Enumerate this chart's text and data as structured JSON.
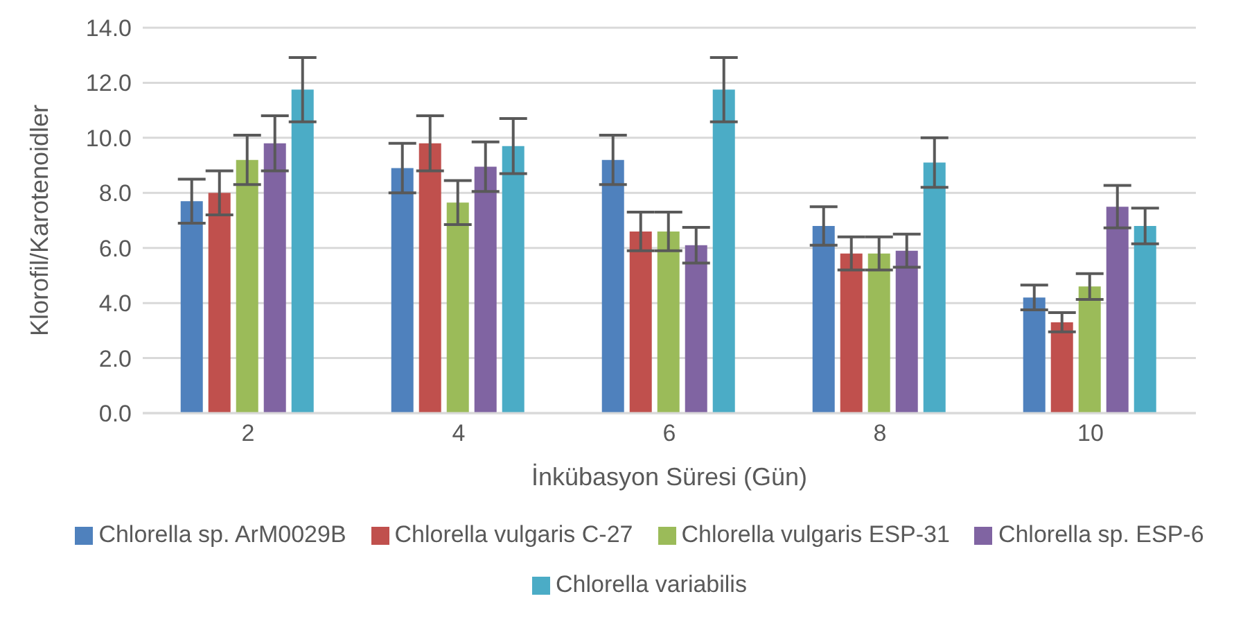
{
  "chart_data": {
    "type": "bar",
    "xlabel": "İnkübasyon Süresi (Gün)",
    "ylabel": "Klorofil/Karotenoidler",
    "categories": [
      "2",
      "4",
      "6",
      "8",
      "10"
    ],
    "series": [
      {
        "name": "Chlorella sp. ArM0029B",
        "color": "#4f81bd",
        "values": [
          7.7,
          8.9,
          9.2,
          6.8,
          4.2
        ],
        "errors": [
          0.8,
          0.9,
          0.9,
          0.7,
          0.45
        ]
      },
      {
        "name": "Chlorella vulgaris C-27",
        "color": "#c0504d",
        "values": [
          8.0,
          9.8,
          6.6,
          5.8,
          3.3
        ],
        "errors": [
          0.8,
          1.0,
          0.7,
          0.6,
          0.35
        ]
      },
      {
        "name": "Chlorella vulgaris ESP-31",
        "color": "#9bbb59",
        "values": [
          9.2,
          7.65,
          6.6,
          5.8,
          4.6
        ],
        "errors": [
          0.9,
          0.8,
          0.7,
          0.6,
          0.47
        ]
      },
      {
        "name": "Chlorella sp. ESP-6",
        "color": "#8064a2",
        "values": [
          9.8,
          8.95,
          6.1,
          5.9,
          7.5
        ],
        "errors": [
          1.0,
          0.9,
          0.65,
          0.6,
          0.77
        ]
      },
      {
        "name": "Chlorella variabilis",
        "color": "#4bacc6",
        "values": [
          11.75,
          9.7,
          11.75,
          9.1,
          6.8
        ],
        "errors": [
          1.17,
          1.0,
          1.17,
          0.9,
          0.65
        ]
      }
    ],
    "ylim": [
      0,
      14
    ],
    "yticks": [
      {
        "value": 0,
        "label": "0.0"
      },
      {
        "value": 2,
        "label": "2.0"
      },
      {
        "value": 4,
        "label": "4.0"
      },
      {
        "value": 6,
        "label": "6.0"
      },
      {
        "value": 8,
        "label": "8.0"
      },
      {
        "value": 10,
        "label": "10.0"
      },
      {
        "value": 12,
        "label": "12.0"
      },
      {
        "value": 14,
        "label": "14.0"
      }
    ],
    "grid": "y",
    "legend": "bottom"
  }
}
